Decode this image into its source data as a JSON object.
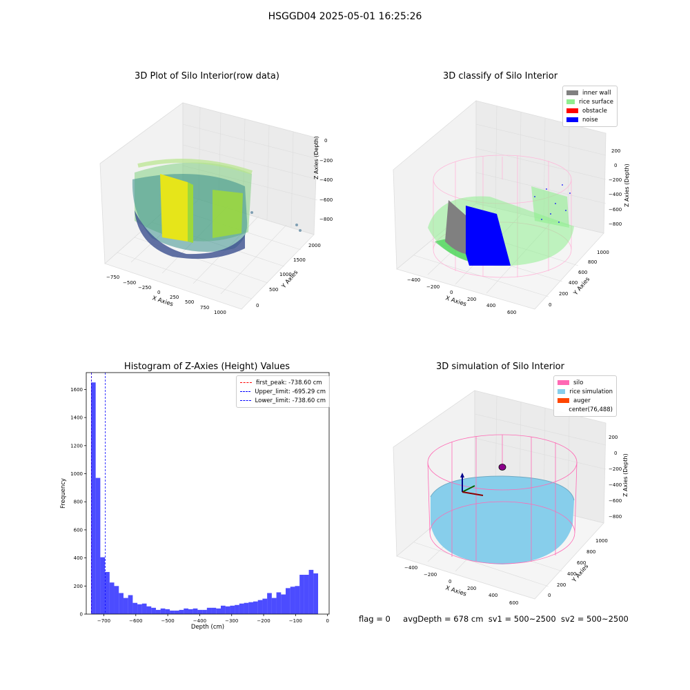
{
  "figure": {
    "title": "HSGGD04 2025-05-01 16:25:26",
    "footer": {
      "flag": "flag = 0",
      "avg_depth": "avgDepth = 678 cm",
      "sv1": "sv1 = 500~2500",
      "sv2": "sv2 = 500~2500"
    }
  },
  "chart_data": [
    {
      "type": "scatter",
      "title": "3D Plot of Silo Interior(row data)",
      "xlabel": "X Axies",
      "ylabel": "Y Axies",
      "zlabel": "Z Axies (Depth)",
      "x_ticks": [
        "−750",
        "−500",
        "−250",
        "0",
        "250",
        "500",
        "750",
        "1000"
      ],
      "y_ticks": [
        "0",
        "500",
        "1000",
        "1500",
        "2000"
      ],
      "z_ticks": [
        "0",
        "−200",
        "−400",
        "−600",
        "−800"
      ],
      "colormap": "viridis",
      "grid": true
    },
    {
      "type": "scatter",
      "title": "3D classify of Silo Interior",
      "xlabel": "X Axies",
      "ylabel": "Y Axies",
      "zlabel": "Z Axies (Depth)",
      "x_ticks": [
        "−400",
        "−200",
        "0",
        "200",
        "400",
        "600"
      ],
      "y_ticks": [
        "0",
        "200",
        "400",
        "600",
        "800",
        "1000"
      ],
      "z_ticks": [
        "200",
        "0",
        "−200",
        "−400",
        "−600",
        "−800"
      ],
      "legend": [
        {
          "label": "inner wall",
          "color": "#808080"
        },
        {
          "label": "rice surface",
          "color": "#90ee90"
        },
        {
          "label": "obstacle",
          "color": "#ff0000"
        },
        {
          "label": "noise",
          "color": "#0000ff"
        }
      ],
      "legend_placement": "top-right",
      "grid": true
    },
    {
      "type": "bar",
      "title": "Histogram of Z-Axies (Height) Values",
      "xlabel": "Depth (cm)",
      "ylabel": "Frequency",
      "xlim": [
        -755,
        5
      ],
      "ylim": [
        0,
        1720
      ],
      "x_ticks": [
        -700,
        -600,
        -500,
        -400,
        -300,
        -200,
        -100,
        0
      ],
      "x_tick_labels": [
        "−700",
        "−600",
        "−500",
        "−400",
        "−300",
        "−200",
        "−100",
        "0"
      ],
      "y_ticks": [
        0,
        200,
        400,
        600,
        800,
        1000,
        1200,
        1400,
        1600
      ],
      "bar_color": "#0000ff",
      "bin_width": 14.5,
      "bin_start": -740,
      "values": [
        1650,
        970,
        405,
        300,
        225,
        200,
        150,
        115,
        135,
        80,
        70,
        75,
        55,
        45,
        30,
        40,
        35,
        25,
        25,
        30,
        40,
        35,
        40,
        30,
        30,
        45,
        45,
        40,
        60,
        55,
        60,
        65,
        75,
        80,
        85,
        90,
        100,
        110,
        150,
        115,
        155,
        140,
        185,
        195,
        200,
        280,
        280,
        315,
        290
      ],
      "lines": [
        {
          "label": "first_peak: -738.60 cm",
          "x": -738.6,
          "color": "#ff0000"
        },
        {
          "label": "Upper_limit: -695.29 cm",
          "x": -695.29,
          "color": "#0000ff"
        },
        {
          "label": "Lower_limit: -738.60 cm",
          "x": -738.6,
          "color": "#0000ff"
        }
      ],
      "legend_placement": "top-right"
    },
    {
      "type": "scatter",
      "title": "3D simulation of Silo Interior",
      "xlabel": "X Axies",
      "ylabel": "Y Axies",
      "zlabel": "Z Axies (Depth)",
      "x_ticks": [
        "−400",
        "−200",
        "0",
        "200",
        "400",
        "600"
      ],
      "y_ticks": [
        "0",
        "200",
        "400",
        "600",
        "800",
        "1000"
      ],
      "z_ticks": [
        "200",
        "0",
        "−200",
        "−400",
        "−600",
        "−800"
      ],
      "legend": [
        {
          "label": "silo",
          "color": "#ff69b4"
        },
        {
          "label": "rice simulation",
          "color": "#87ceeb"
        },
        {
          "label": "auger",
          "color": "#ff4500"
        },
        {
          "label": "center(76,488)",
          "color": ""
        }
      ],
      "legend_placement": "top-right",
      "grid": true
    }
  ]
}
